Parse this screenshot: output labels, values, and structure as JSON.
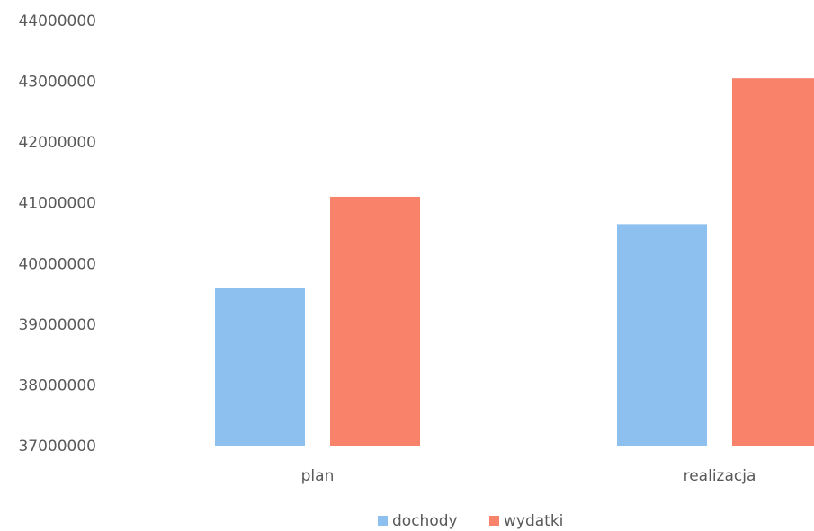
{
  "chart_data": {
    "type": "bar",
    "categories": [
      "plan",
      "realizacja"
    ],
    "series": [
      {
        "name": "dochody",
        "color": "#8EC0EF",
        "values": [
          39600000,
          40650000
        ]
      },
      {
        "name": "wydatki",
        "color": "#F8836A",
        "values": [
          41100000,
          43050000
        ]
      }
    ],
    "ylim": [
      37000000,
      44000000
    ],
    "yticks": [
      37000000,
      38000000,
      39000000,
      40000000,
      41000000,
      42000000,
      43000000,
      44000000
    ],
    "ytick_labels": [
      "37000000",
      "38000000",
      "39000000",
      "40000000",
      "41000000",
      "42000000",
      "43000000",
      "44000000"
    ],
    "grid": false,
    "legend": "bottom",
    "title": "",
    "xlabel": "",
    "ylabel": ""
  }
}
